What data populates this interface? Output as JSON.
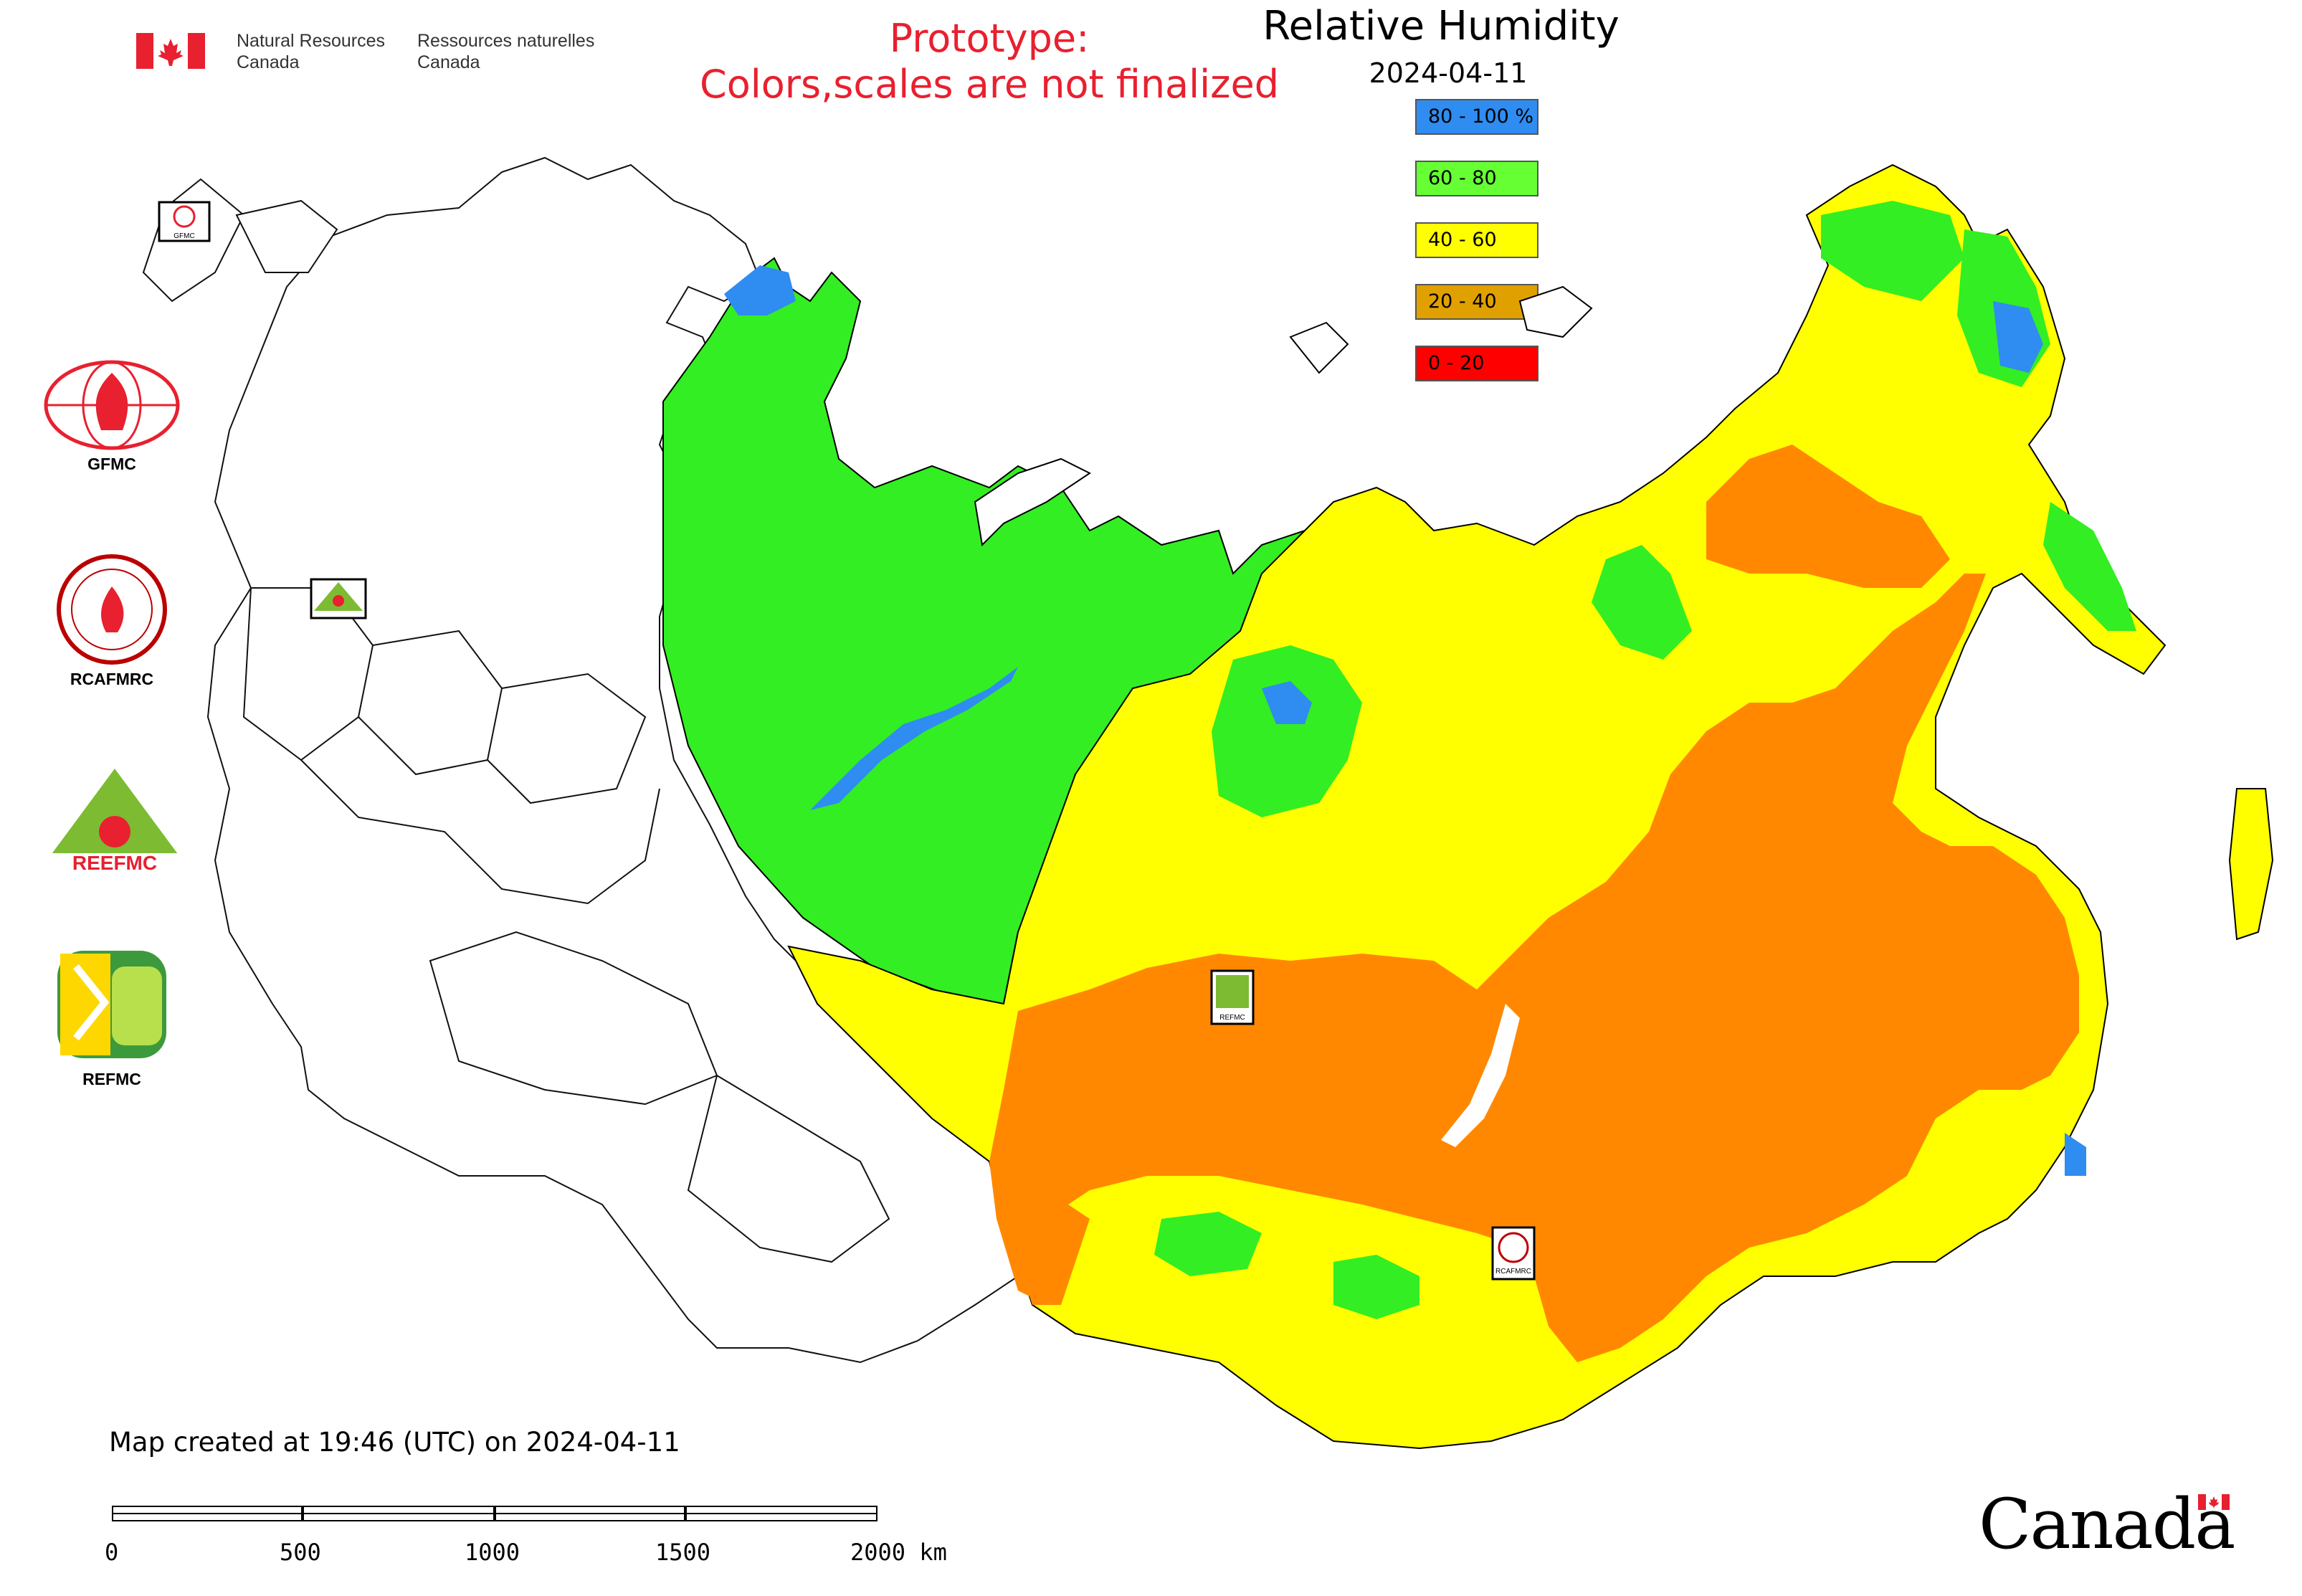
{
  "header": {
    "agency_en_line1": "Natural Resources",
    "agency_en_line2": "Canada",
    "agency_fr_line1": "Ressources naturelles",
    "agency_fr_line2": "Canada",
    "prototype_line1": "Prototype:",
    "prototype_line2": "Colors,scales are not finalized"
  },
  "map": {
    "title": "Relative Humidity",
    "date": "2024-04-11",
    "legend": [
      {
        "label": "80 - 100 %",
        "color": "#2f8cf0"
      },
      {
        "label": "60 - 80",
        "color": "#66ff33"
      },
      {
        "label": "40 - 60",
        "color": "#ffff00"
      },
      {
        "label": "20 - 40",
        "color": "#e0a000"
      },
      {
        "label": "0 - 20",
        "color": "#ff0000"
      }
    ],
    "colors": {
      "very_humid": "#2f8cf0",
      "humid": "#33ee22",
      "moderate": "#ffff00",
      "dry": "#ff8800",
      "very_dry": "#ff0000"
    }
  },
  "logos": [
    {
      "name": "GFMC",
      "label": "GFMC"
    },
    {
      "name": "RCAFMRC",
      "label": "RCAFMRC"
    },
    {
      "name": "REEFMC",
      "label": "REEFMC"
    },
    {
      "name": "REFMC",
      "label": "REFMC"
    }
  ],
  "map_markers": {
    "gfmc": "GFMC",
    "reefmc": "REEFMC",
    "refmc": "REFMC",
    "rcafmrc": "RCAFMRC"
  },
  "footer": {
    "created": "Map created at 19:46 (UTC) on 2024-04-11",
    "scale_labels": [
      "0",
      "500",
      "1000",
      "1500",
      "2000 km"
    ],
    "wordmark": "Canada"
  }
}
